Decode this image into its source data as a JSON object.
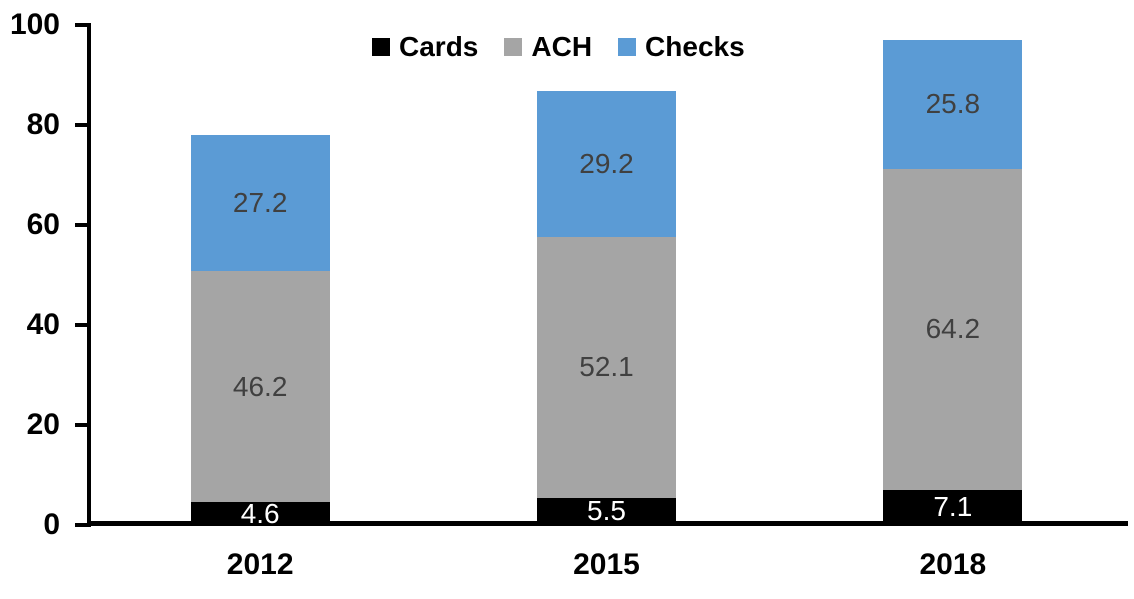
{
  "chart_data": {
    "type": "bar",
    "stacked": true,
    "title": "",
    "xlabel": "",
    "ylabel": "",
    "grid": false,
    "legend_position": "top",
    "categories": [
      "2012",
      "2015",
      "2018"
    ],
    "series": [
      {
        "name": "Cards",
        "color": "#000000",
        "label_color": "#FFFFFF",
        "values": [
          4.6,
          5.5,
          7.1
        ]
      },
      {
        "name": "ACH",
        "color": "#A5A5A5",
        "label_color": "#404040",
        "values": [
          46.2,
          52.1,
          64.2
        ]
      },
      {
        "name": "Checks",
        "color": "#5B9BD5",
        "label_color": "#404040",
        "values": [
          27.2,
          29.2,
          25.8
        ]
      }
    ],
    "totals": [
      78.0,
      86.8,
      97.1
    ],
    "ylim": [
      0,
      100
    ],
    "yticks": [
      0,
      20,
      40,
      60,
      80,
      100
    ],
    "value_decimals": 1
  }
}
